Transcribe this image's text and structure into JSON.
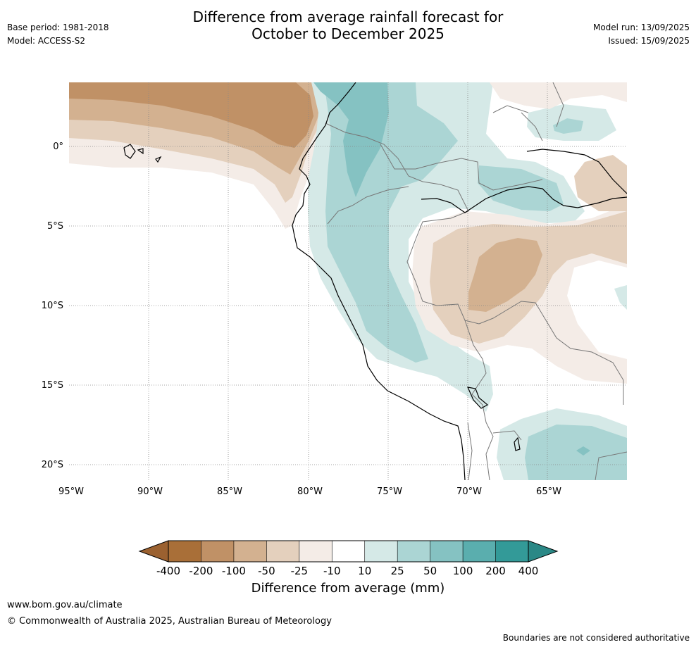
{
  "header": {
    "base_period": "Base period: 1981-2018",
    "model": "Model: ACCESS-S2",
    "title_line1": "Difference from average rainfall forecast for",
    "title_line2": "October to December 2025",
    "model_run": "Model run: 13/09/2025",
    "issued": "Issued: 15/09/2025"
  },
  "map": {
    "lon_range": [
      -95,
      -60
    ],
    "lat_range": [
      -21,
      4
    ],
    "lat_ticks": [
      {
        "value": 0,
        "label": "0°"
      },
      {
        "value": -5,
        "label": "5°S"
      },
      {
        "value": -10,
        "label": "10°S"
      },
      {
        "value": -15,
        "label": "15°S"
      },
      {
        "value": -20,
        "label": "20°S"
      }
    ],
    "lon_ticks": [
      {
        "value": -95,
        "label": "95°W"
      },
      {
        "value": -90,
        "label": "90°W"
      },
      {
        "value": -85,
        "label": "85°W"
      },
      {
        "value": -80,
        "label": "80°W"
      },
      {
        "value": -75,
        "label": "75°W"
      },
      {
        "value": -70,
        "label": "70°W"
      },
      {
        "value": -65,
        "label": "65°W"
      }
    ],
    "gridlines": "dotted"
  },
  "colorbar": {
    "title": "Difference from average (mm)",
    "boundaries": [
      "-400",
      "-200",
      "-100",
      "-50",
      "-25",
      "-10",
      "10",
      "25",
      "50",
      "100",
      "200",
      "400"
    ],
    "colors": [
      "#a96f38",
      "#c09166",
      "#d3b190",
      "#e4d0bd",
      "#f4ece7",
      "#ffffff",
      "#d5e9e7",
      "#abd5d4",
      "#85c2c2",
      "#5aaeae",
      "#339a98"
    ],
    "extend_low_color": "#9b6130",
    "extend_high_color": "#2a8886"
  },
  "footer": {
    "url": "www.bom.gov.au/climate",
    "copyright": "© Commonwealth of Australia 2025, Australian Bureau of Meteorology",
    "disclaimer": "Boundaries are not considered authoritative"
  }
}
